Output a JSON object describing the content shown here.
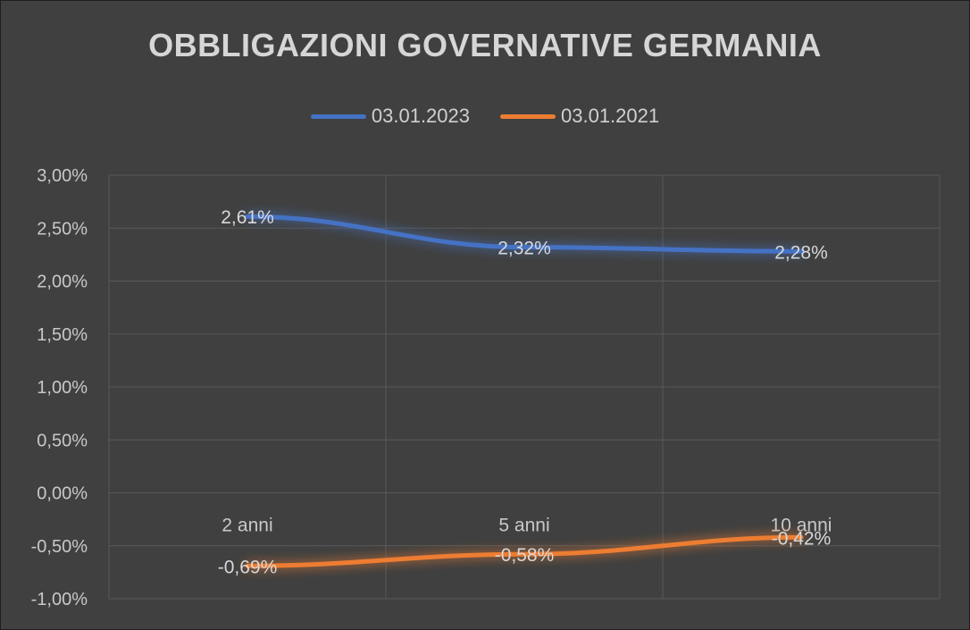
{
  "chart_data": {
    "type": "line",
    "title": "OBBLIGAZIONI GOVERNATIVE GERMANIA",
    "categories": [
      "2 anni",
      "5 anni",
      "10 anni"
    ],
    "series": [
      {
        "name": "03.01.2023",
        "values": [
          2.61,
          2.32,
          2.28
        ],
        "labels": [
          "2,61%",
          "2,32%",
          "2,28%"
        ],
        "color": "#4472c4"
      },
      {
        "name": "03.01.2021",
        "values": [
          -0.69,
          -0.58,
          -0.42
        ],
        "labels": [
          "-0,69%",
          "-0,58%",
          "-0,42%"
        ],
        "color": "#ed7d31"
      }
    ],
    "ylim": [
      -1.0,
      3.0
    ],
    "yticks": [
      3.0,
      2.5,
      2.0,
      1.5,
      1.0,
      0.5,
      0.0,
      -0.5,
      -1.0
    ],
    "ytick_labels": [
      "3,00%",
      "2,50%",
      "2,00%",
      "1,50%",
      "1,00%",
      "0,50%",
      "0,00%",
      "-0,50%",
      "-1,00%"
    ],
    "legend_position": "top",
    "grid": true,
    "background": "#404040",
    "gridline_color": "#595959"
  }
}
